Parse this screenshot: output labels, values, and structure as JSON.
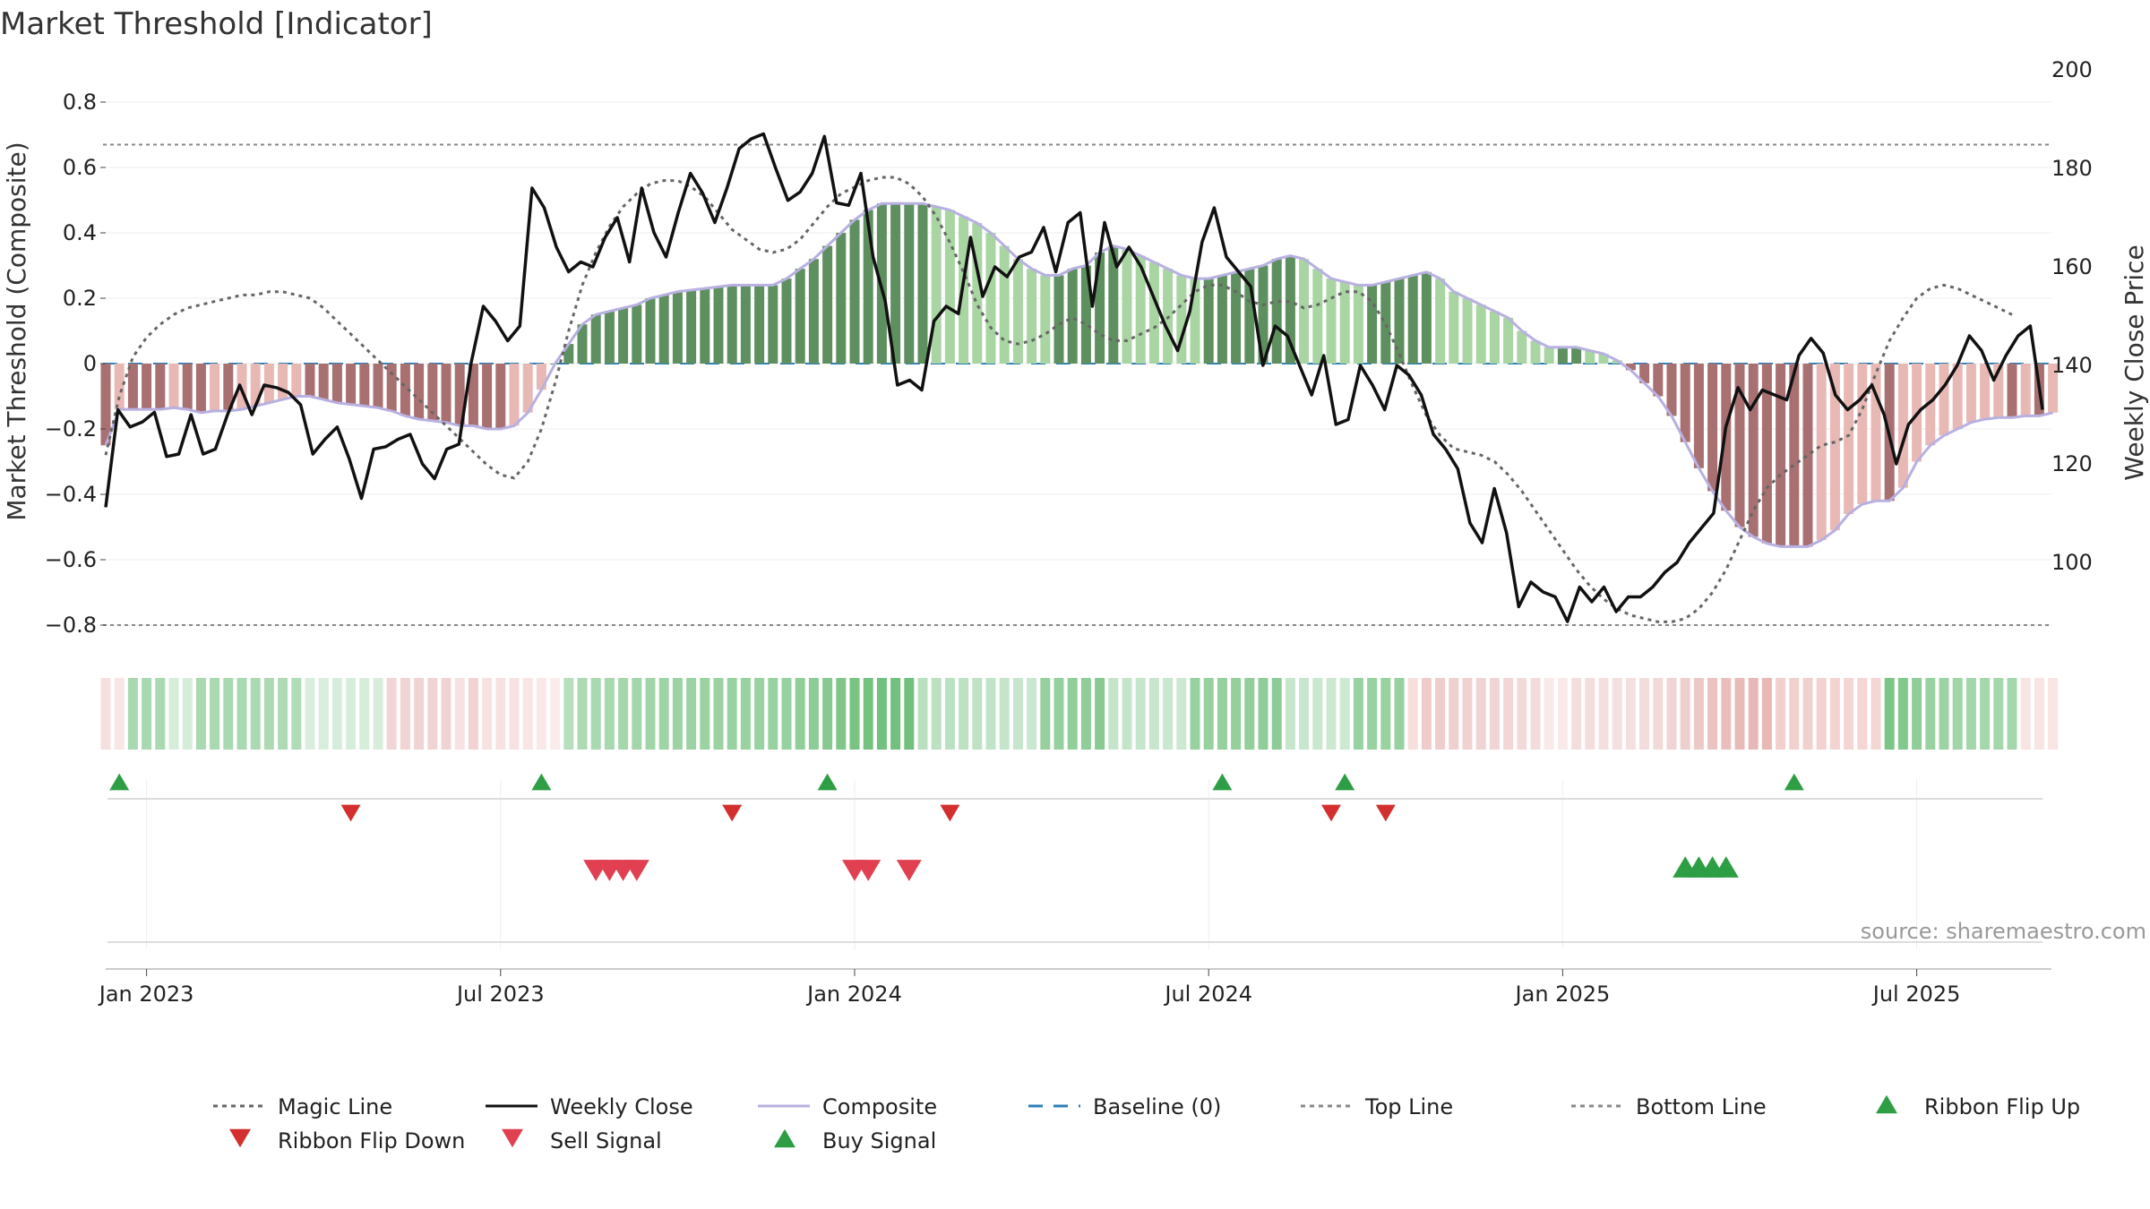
{
  "chart_data": {
    "type": "bar",
    "title": "Market Threshold [Indicator]",
    "ylabel": "Market Threshold (Composite)",
    "y2label": "Weekly Close Price",
    "ylim": [
      -0.9,
      0.9
    ],
    "y2lim": [
      81.2,
      204.8
    ],
    "yticks": [
      0.8,
      0.6,
      0.4,
      0.2,
      0,
      -0.2,
      -0.4,
      -0.6,
      -0.8
    ],
    "ytick_labels": [
      "0.8",
      "0.6",
      "0.4",
      "0.2",
      "0",
      "−0.2",
      "−0.4",
      "−0.6",
      "−0.8"
    ],
    "y2ticks": [
      200,
      180,
      160,
      140,
      120,
      100
    ],
    "y2tick_labels": [
      "200",
      "180",
      "160",
      "140",
      "120",
      "100"
    ],
    "xtick_labels": [
      "Jan 2023",
      "Jul 2023",
      "Jan 2024",
      "Jul 2024",
      "Jan 2025",
      "Jul 2025"
    ],
    "xtick_weeks": [
      3,
      29,
      55,
      81,
      107,
      133
    ],
    "top_line": 0.67,
    "bottom_line": -0.8,
    "composite": [
      -0.25,
      -0.14,
      -0.14,
      -0.14,
      -0.14,
      -0.135,
      -0.14,
      -0.15,
      -0.145,
      -0.145,
      -0.14,
      -0.13,
      -0.12,
      -0.11,
      -0.1,
      -0.1,
      -0.11,
      -0.12,
      -0.125,
      -0.13,
      -0.135,
      -0.145,
      -0.16,
      -0.17,
      -0.175,
      -0.18,
      -0.19,
      -0.19,
      -0.2,
      -0.2,
      -0.19,
      -0.15,
      -0.08,
      0,
      0.06,
      0.12,
      0.15,
      0.16,
      0.17,
      0.18,
      0.2,
      0.21,
      0.22,
      0.225,
      0.23,
      0.235,
      0.24,
      0.24,
      0.24,
      0.24,
      0.26,
      0.29,
      0.32,
      0.36,
      0.4,
      0.44,
      0.47,
      0.49,
      0.49,
      0.49,
      0.49,
      0.48,
      0.47,
      0.45,
      0.43,
      0.4,
      0.36,
      0.32,
      0.29,
      0.27,
      0.27,
      0.29,
      0.3,
      0.34,
      0.36,
      0.35,
      0.33,
      0.31,
      0.29,
      0.27,
      0.26,
      0.26,
      0.27,
      0.28,
      0.29,
      0.3,
      0.32,
      0.33,
      0.32,
      0.29,
      0.26,
      0.25,
      0.24,
      0.24,
      0.25,
      0.26,
      0.27,
      0.28,
      0.26,
      0.22,
      0.2,
      0.18,
      0.16,
      0.14,
      0.1,
      0.07,
      0.05,
      0.05,
      0.05,
      0.04,
      0.03,
      0.01,
      -0.02,
      -0.06,
      -0.1,
      -0.16,
      -0.24,
      -0.32,
      -0.39,
      -0.45,
      -0.5,
      -0.53,
      -0.55,
      -0.56,
      -0.56,
      -0.56,
      -0.54,
      -0.51,
      -0.46,
      -0.43,
      -0.42,
      -0.42,
      -0.38,
      -0.3,
      -0.25,
      -0.22,
      -0.2,
      -0.18,
      -0.17,
      -0.165,
      -0.165,
      -0.16,
      -0.16,
      -0.15
    ],
    "magic_line": [
      -0.28,
      -0.1,
      0.02,
      0.08,
      0.12,
      0.15,
      0.17,
      0.18,
      0.19,
      0.2,
      0.21,
      0.21,
      0.22,
      0.22,
      0.21,
      0.2,
      0.17,
      0.13,
      0.09,
      0.05,
      0.01,
      -0.03,
      -0.07,
      -0.11,
      -0.15,
      -0.19,
      -0.23,
      -0.27,
      -0.31,
      -0.34,
      -0.35,
      -0.3,
      -0.2,
      -0.06,
      0.1,
      0.24,
      0.34,
      0.42,
      0.48,
      0.52,
      0.55,
      0.56,
      0.56,
      0.54,
      0.51,
      0.46,
      0.41,
      0.38,
      0.35,
      0.34,
      0.35,
      0.38,
      0.43,
      0.48,
      0.52,
      0.54,
      0.56,
      0.57,
      0.57,
      0.55,
      0.51,
      0.45,
      0.37,
      0.28,
      0.18,
      0.11,
      0.07,
      0.06,
      0.07,
      0.09,
      0.12,
      0.14,
      0.12,
      0.09,
      0.07,
      0.07,
      0.09,
      0.11,
      0.14,
      0.18,
      0.22,
      0.24,
      0.24,
      0.22,
      0.19,
      0.18,
      0.19,
      0.19,
      0.17,
      0.18,
      0.2,
      0.22,
      0.22,
      0.19,
      0.12,
      0.03,
      -0.07,
      -0.16,
      -0.22,
      -0.26,
      -0.27,
      -0.28,
      -0.3,
      -0.34,
      -0.39,
      -0.45,
      -0.51,
      -0.57,
      -0.63,
      -0.68,
      -0.72,
      -0.75,
      -0.77,
      -0.78,
      -0.79,
      -0.79,
      -0.78,
      -0.75,
      -0.7,
      -0.63,
      -0.54,
      -0.45,
      -0.38,
      -0.34,
      -0.31,
      -0.28,
      -0.25,
      -0.24,
      -0.22,
      -0.14,
      -0.03,
      0.07,
      0.14,
      0.2,
      0.23,
      0.24,
      0.23,
      0.21,
      0.19,
      0.17,
      0.15
    ],
    "weekly_close": [
      111.2,
      131,
      127.5,
      128.5,
      130.5,
      121.5,
      122,
      130,
      122,
      123,
      130,
      136,
      130,
      136,
      135.5,
      134.5,
      132,
      122,
      125,
      127.5,
      121,
      113,
      123,
      123.5,
      125,
      126,
      120,
      117,
      123,
      124,
      140.5,
      152,
      149,
      145,
      148,
      176,
      172,
      164,
      159,
      161,
      160,
      166,
      170,
      161,
      176,
      167,
      162,
      171,
      179,
      175,
      169,
      176,
      184,
      186,
      187,
      180,
      173.5,
      175.2,
      179,
      186.5,
      173,
      172.5,
      179,
      162,
      153,
      136,
      137,
      135,
      149,
      152,
      150.5,
      166,
      154,
      160,
      158,
      162,
      163,
      168,
      159,
      169,
      171,
      152,
      169,
      160,
      164,
      160,
      154,
      148,
      143,
      151,
      165,
      172,
      162,
      159,
      156,
      140,
      148,
      146,
      140,
      134,
      142,
      128,
      129,
      140,
      136,
      131,
      140,
      138,
      134,
      126,
      123,
      119,
      108,
      104,
      115,
      106,
      91,
      96,
      94,
      93,
      88,
      95,
      92,
      95,
      90,
      93,
      93,
      95,
      98,
      100,
      104,
      107,
      110,
      127.5,
      135.5,
      131,
      135,
      134,
      133,
      142,
      145.5,
      142.5,
      134,
      131,
      133,
      136,
      130,
      120,
      128,
      131,
      133,
      136,
      140,
      146,
      143,
      137,
      142,
      146,
      148,
      131
    ],
    "ribbon_flip_up_weeks": [
      1,
      32,
      53,
      82,
      91,
      124
    ],
    "ribbon_flip_down_weeks": [
      18,
      46,
      62,
      90,
      94
    ],
    "sell_signal_weeks": [
      36,
      37,
      38,
      39,
      55,
      56,
      59
    ],
    "buy_signal_weeks": [
      116,
      117,
      118,
      119
    ]
  },
  "source": "source: sharemaestro.com",
  "legend": [
    {
      "label": "Magic Line",
      "kind": "dotted",
      "color": "#666666"
    },
    {
      "label": "Weekly Close",
      "kind": "solid",
      "color": "#111111"
    },
    {
      "label": "Composite",
      "kind": "solid",
      "color": "#b8b0e0"
    },
    {
      "label": "Baseline (0)",
      "kind": "dashed",
      "color": "#2c7fb8"
    },
    {
      "label": "Top Line",
      "kind": "dotted",
      "color": "#888888"
    },
    {
      "label": "Bottom Line",
      "kind": "dotted",
      "color": "#888888"
    },
    {
      "label": "Ribbon Flip Up",
      "kind": "tri-up",
      "color": "#2e9e45"
    },
    {
      "label": "Ribbon Flip Down",
      "kind": "tri-down",
      "color": "#d32f2f"
    },
    {
      "label": "Sell Signal",
      "kind": "tri-down",
      "color": "#e04050"
    },
    {
      "label": "Buy Signal",
      "kind": "tri-up",
      "color": "#2e9e45"
    }
  ],
  "colors": {
    "pos_strong": "#5e8f5e",
    "pos_light": "#a8d5a2",
    "neg_strong": "#a87070",
    "neg_light": "#e8b8b4",
    "extreme": "#f5c000"
  }
}
